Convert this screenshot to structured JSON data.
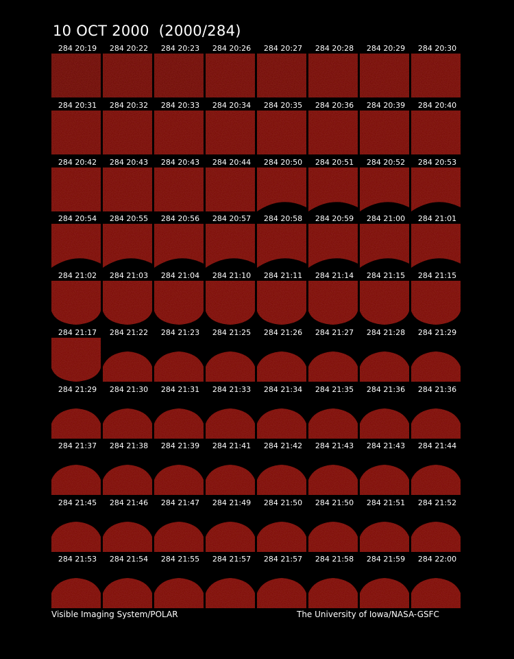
{
  "title": "10 OCT 2000  (2000/284)",
  "credits": {
    "left": "Visible Imaging System/POLAR",
    "right": "The University of Iowa/NASA-GSFC"
  },
  "colors": {
    "background": "#000000",
    "text": "#ffffff",
    "earth_glow": "#7a1008",
    "earth_dark": "#4a0804"
  },
  "frames": [
    {
      "label": "284 20:19",
      "view": "full",
      "shade": 0.55
    },
    {
      "label": "284 20:22",
      "view": "full",
      "shade": 0.65
    },
    {
      "label": "284 20:23",
      "view": "full",
      "shade": 0.62
    },
    {
      "label": "284 20:26",
      "view": "full",
      "shade": 0.72
    },
    {
      "label": "284 20:27",
      "view": "full",
      "shade": 0.7
    },
    {
      "label": "284 20:28",
      "view": "full",
      "shade": 0.74
    },
    {
      "label": "284 20:29",
      "view": "full",
      "shade": 0.78
    },
    {
      "label": "284 20:30",
      "view": "full",
      "shade": 0.8
    },
    {
      "label": "284 20:31",
      "view": "full",
      "shade": 0.82
    },
    {
      "label": "284 20:32",
      "view": "full",
      "shade": 0.84
    },
    {
      "label": "284 20:33",
      "view": "full",
      "shade": 0.85
    },
    {
      "label": "284 20:34",
      "view": "full",
      "shade": 0.86
    },
    {
      "label": "284 20:35",
      "view": "full",
      "shade": 0.87
    },
    {
      "label": "284 20:36",
      "view": "full",
      "shade": 0.88
    },
    {
      "label": "284 20:39",
      "view": "full",
      "shade": 0.9
    },
    {
      "label": "284 20:40",
      "view": "full",
      "shade": 0.9
    },
    {
      "label": "284 20:42",
      "view": "full",
      "shade": 0.9
    },
    {
      "label": "284 20:43",
      "view": "full",
      "shade": 0.9
    },
    {
      "label": "284 20:43",
      "view": "full",
      "shade": 0.9
    },
    {
      "label": "284 20:44",
      "view": "full",
      "shade": 0.9
    },
    {
      "label": "284 20:50",
      "view": "limb",
      "shade": 0.92
    },
    {
      "label": "284 20:51",
      "view": "limb",
      "shade": 0.92
    },
    {
      "label": "284 20:52",
      "view": "limb",
      "shade": 0.92
    },
    {
      "label": "284 20:53",
      "view": "limb",
      "shade": 0.92
    },
    {
      "label": "284 20:54",
      "view": "limb",
      "shade": 0.93
    },
    {
      "label": "284 20:55",
      "view": "limb",
      "shade": 0.93
    },
    {
      "label": "284 20:56",
      "view": "limb",
      "shade": 0.93
    },
    {
      "label": "284 20:57",
      "view": "limb",
      "shade": 0.93
    },
    {
      "label": "284 20:58",
      "view": "limb",
      "shade": 0.94
    },
    {
      "label": "284 20:59",
      "view": "limb",
      "shade": 0.94
    },
    {
      "label": "284 21:00",
      "view": "limb",
      "shade": 0.94
    },
    {
      "label": "284 21:01",
      "view": "limb",
      "shade": 0.94
    },
    {
      "label": "284 21:02",
      "view": "round",
      "shade": 0.95
    },
    {
      "label": "284 21:03",
      "view": "round",
      "shade": 0.95
    },
    {
      "label": "284 21:04",
      "view": "round",
      "shade": 0.95
    },
    {
      "label": "284 21:10",
      "view": "round",
      "shade": 0.95
    },
    {
      "label": "284 21:11",
      "view": "round",
      "shade": 0.96
    },
    {
      "label": "284 21:14",
      "view": "round",
      "shade": 0.96
    },
    {
      "label": "284 21:15",
      "view": "round",
      "shade": 0.96
    },
    {
      "label": "284 21:15",
      "view": "round",
      "shade": 0.96
    },
    {
      "label": "284 21:17",
      "view": "round",
      "shade": 0.96
    },
    {
      "label": "284 21:22",
      "view": "dome",
      "shade": 0.97
    },
    {
      "label": "284 21:23",
      "view": "dome",
      "shade": 0.97
    },
    {
      "label": "284 21:25",
      "view": "dome",
      "shade": 0.97
    },
    {
      "label": "284 21:26",
      "view": "dome",
      "shade": 0.97
    },
    {
      "label": "284 21:27",
      "view": "dome",
      "shade": 0.97
    },
    {
      "label": "284 21:28",
      "view": "dome",
      "shade": 0.97
    },
    {
      "label": "284 21:29",
      "view": "dome",
      "shade": 0.97
    },
    {
      "label": "284 21:29",
      "view": "dome",
      "shade": 0.98
    },
    {
      "label": "284 21:30",
      "view": "dome",
      "shade": 0.98
    },
    {
      "label": "284 21:31",
      "view": "dome",
      "shade": 0.98
    },
    {
      "label": "284 21:33",
      "view": "dome",
      "shade": 0.98
    },
    {
      "label": "284 21:34",
      "view": "dome",
      "shade": 0.98
    },
    {
      "label": "284 21:35",
      "view": "dome",
      "shade": 0.98
    },
    {
      "label": "284 21:36",
      "view": "dome",
      "shade": 0.98
    },
    {
      "label": "284 21:36",
      "view": "dome",
      "shade": 0.98
    },
    {
      "label": "284 21:37",
      "view": "dome",
      "shade": 0.99
    },
    {
      "label": "284 21:38",
      "view": "dome",
      "shade": 0.99
    },
    {
      "label": "284 21:39",
      "view": "dome",
      "shade": 0.99
    },
    {
      "label": "284 21:41",
      "view": "dome",
      "shade": 0.99
    },
    {
      "label": "284 21:42",
      "view": "dome",
      "shade": 0.99
    },
    {
      "label": "284 21:43",
      "view": "dome",
      "shade": 0.99
    },
    {
      "label": "284 21:43",
      "view": "dome",
      "shade": 0.99
    },
    {
      "label": "284 21:44",
      "view": "dome",
      "shade": 0.99
    },
    {
      "label": "284 21:45",
      "view": "dome",
      "shade": 1.0
    },
    {
      "label": "284 21:46",
      "view": "dome",
      "shade": 1.0
    },
    {
      "label": "284 21:47",
      "view": "dome",
      "shade": 1.0
    },
    {
      "label": "284 21:49",
      "view": "dome",
      "shade": 1.0
    },
    {
      "label": "284 21:50",
      "view": "dome",
      "shade": 1.0
    },
    {
      "label": "284 21:50",
      "view": "dome",
      "shade": 1.0
    },
    {
      "label": "284 21:51",
      "view": "dome",
      "shade": 1.0
    },
    {
      "label": "284 21:52",
      "view": "dome",
      "shade": 1.0
    },
    {
      "label": "284 21:53",
      "view": "dome",
      "shade": 1.0
    },
    {
      "label": "284 21:54",
      "view": "dome",
      "shade": 1.0
    },
    {
      "label": "284 21:55",
      "view": "dome",
      "shade": 1.0
    },
    {
      "label": "284 21:57",
      "view": "dome",
      "shade": 1.0
    },
    {
      "label": "284 21:57",
      "view": "dome",
      "shade": 1.0
    },
    {
      "label": "284 21:58",
      "view": "dome",
      "shade": 1.0
    },
    {
      "label": "284 21:59",
      "view": "dome",
      "shade": 1.0
    },
    {
      "label": "284 22:00",
      "view": "dome",
      "shade": 1.0
    }
  ]
}
